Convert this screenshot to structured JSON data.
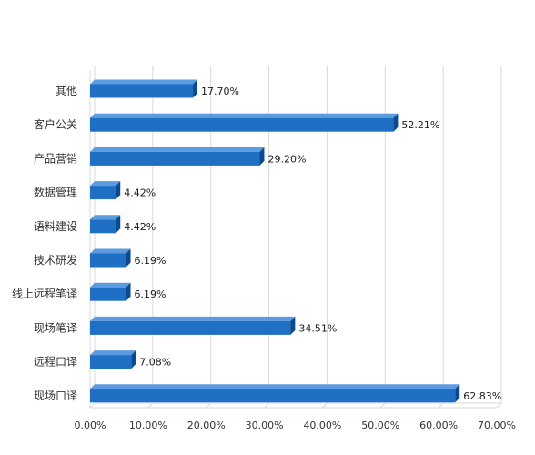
{
  "chart_data": {
    "type": "bar",
    "orientation": "horizontal",
    "style": "3d",
    "categories": [
      "其他",
      "客户公关",
      "产品营销",
      "数据管理",
      "语料建设",
      "技术研发",
      "线上远程笔译",
      "现场笔译",
      "远程口译",
      "现场口译"
    ],
    "values": [
      17.7,
      52.21,
      29.2,
      4.42,
      4.42,
      6.19,
      6.19,
      34.51,
      7.08,
      62.83
    ],
    "value_labels": [
      "17.70%",
      "52.21%",
      "29.20%",
      "4.42%",
      "4.42%",
      "6.19%",
      "6.19%",
      "34.51%",
      "7.08%",
      "62.83%"
    ],
    "xlim": [
      0,
      70
    ],
    "x_ticks": [
      0,
      10,
      20,
      30,
      40,
      50,
      60,
      70
    ],
    "x_tick_labels": [
      "0.00%",
      "10.00%",
      "20.00%",
      "30.00%",
      "40.00%",
      "50.00%",
      "60.00%",
      "70.00%"
    ],
    "grid": true,
    "bar_color": "#1F6FC5",
    "bar_top_color": "#5B9BE0",
    "bar_side_color": "#0B4A8F",
    "grid_color": "#D9D9D9"
  }
}
